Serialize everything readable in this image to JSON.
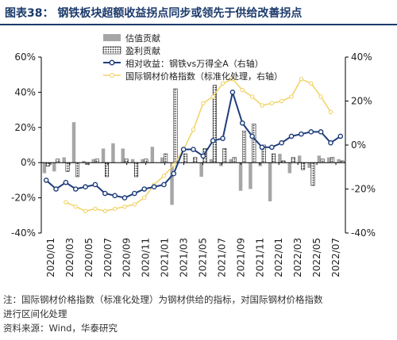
{
  "title": "图表38：  钢铁板块超额收益拐点同步或领先于供给改善拐点",
  "note_line1": "注：国际钢材价格指数（标准化处理）为钢材供给的指标，对国际钢材价格指数",
  "note_line2": "进行区间化处理",
  "source": "资料来源：Wind，华泰研究",
  "colors": {
    "valuation_bar": "#a6a6a6",
    "profit_bar": "#222222",
    "relative_line": "#1f3d7a",
    "price_index_line": "#f2d46b",
    "axis": "#000000"
  },
  "chart_data": {
    "type": "bar+line",
    "x_tick_labels": [
      "2020/01",
      "2020/03",
      "2020/05",
      "2020/07",
      "2020/09",
      "2020/11",
      "2021/01",
      "2021/03",
      "2021/05",
      "2021/07",
      "2021/09",
      "2021/11",
      "2022/01",
      "2022/03",
      "2022/05",
      "2022/07"
    ],
    "left_axis": {
      "ylim": [
        -0.4,
        0.6
      ],
      "tick_labels": [
        "-40%",
        "-20%",
        "0%",
        "20%",
        "40%",
        "60%"
      ]
    },
    "right_axis": {
      "ylim": [
        -0.4,
        0.4
      ],
      "tick_labels": [
        "-40%",
        "-20%",
        "0%",
        "20%",
        "40%"
      ]
    },
    "legend": [
      "估值贡献",
      "盈利贡献",
      "相对收益：钢铁vs万得全A（右轴）",
      "国际钢材价格指数（标准化处理，右轴）"
    ],
    "series": [
      {
        "name": "估值贡献",
        "type": "bar",
        "axis": "left",
        "values": [
          -0.06,
          -0.05,
          0.03,
          0.23,
          0.01,
          0.02,
          0.08,
          0.11,
          0.08,
          0.02,
          0.02,
          0.09,
          0.03,
          -0.24,
          0.0,
          0.0,
          -0.08,
          0.02,
          -0.02,
          0.02,
          -0.16,
          -0.15,
          -0.02,
          -0.22,
          0.05,
          -0.06,
          0.04,
          -0.03,
          0.04,
          0.03,
          0.02
        ]
      },
      {
        "name": "盈利贡献",
        "type": "bar",
        "axis": "left",
        "values": [
          -0.02,
          0.02,
          -0.05,
          -0.08,
          -0.01,
          0.02,
          -0.08,
          0.0,
          0.02,
          -0.08,
          0.02,
          0.0,
          0.05,
          0.42,
          0.05,
          0.03,
          0.08,
          0.44,
          0.08,
          0.03,
          0.18,
          0.22,
          0.1,
          0.05,
          0.01,
          0.03,
          -0.04,
          -0.13,
          0.02,
          0.03,
          0.01
        ]
      },
      {
        "name": "相对收益：钢铁vs万得全A（右轴）",
        "type": "line",
        "axis": "right",
        "values": [
          -0.16,
          -0.2,
          -0.17,
          -0.2,
          -0.19,
          -0.18,
          -0.22,
          -0.23,
          -0.24,
          -0.22,
          -0.2,
          -0.19,
          -0.18,
          -0.13,
          -0.02,
          -0.02,
          -0.05,
          0.02,
          0.03,
          0.24,
          0.1,
          0.04,
          -0.01,
          -0.01,
          0.01,
          0.04,
          0.05,
          0.06,
          0.06,
          0.01,
          0.04
        ]
      },
      {
        "name": "国际钢材价格指数（标准化处理，右轴）",
        "type": "line",
        "axis": "right",
        "values": [
          null,
          null,
          -0.26,
          -0.28,
          -0.3,
          -0.29,
          -0.3,
          -0.29,
          -0.28,
          -0.27,
          -0.24,
          -0.18,
          -0.14,
          -0.09,
          -0.02,
          0.07,
          0.19,
          0.22,
          0.28,
          0.3,
          0.25,
          0.22,
          0.18,
          0.19,
          0.2,
          0.22,
          0.3,
          0.28,
          0.22,
          0.15,
          null
        ]
      }
    ]
  }
}
